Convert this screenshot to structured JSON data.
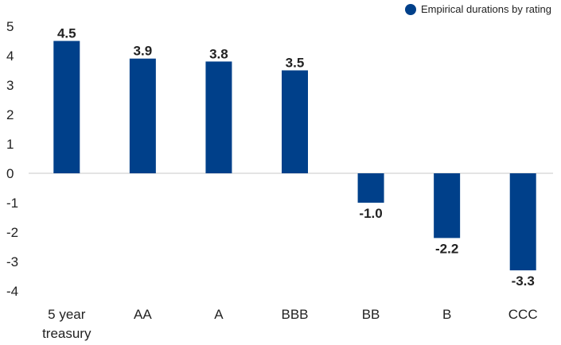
{
  "chart_data": {
    "type": "bar",
    "categories": [
      "5 year\ntreasury",
      "AA",
      "A",
      "BBB",
      "BB",
      "B",
      "CCC"
    ],
    "series": [
      {
        "name": "Empirical durations by rating",
        "values": [
          4.5,
          3.9,
          3.8,
          3.5,
          -1.0,
          -2.2,
          -3.3
        ]
      }
    ],
    "data_labels": [
      "4.5",
      "3.9",
      "3.8",
      "3.5",
      "-1.0",
      "-2.2",
      "-3.3"
    ],
    "ylim": [
      -4,
      5
    ],
    "yticks": [
      5,
      4,
      3,
      2,
      1,
      0,
      -1,
      -2,
      -3,
      -4
    ],
    "title": "",
    "xlabel": "",
    "ylabel": "",
    "grid": false,
    "legend_position": "top-right",
    "colors": {
      "bar": "#00408a",
      "zero_line": "#c8c8c8",
      "text": "#222222"
    }
  }
}
